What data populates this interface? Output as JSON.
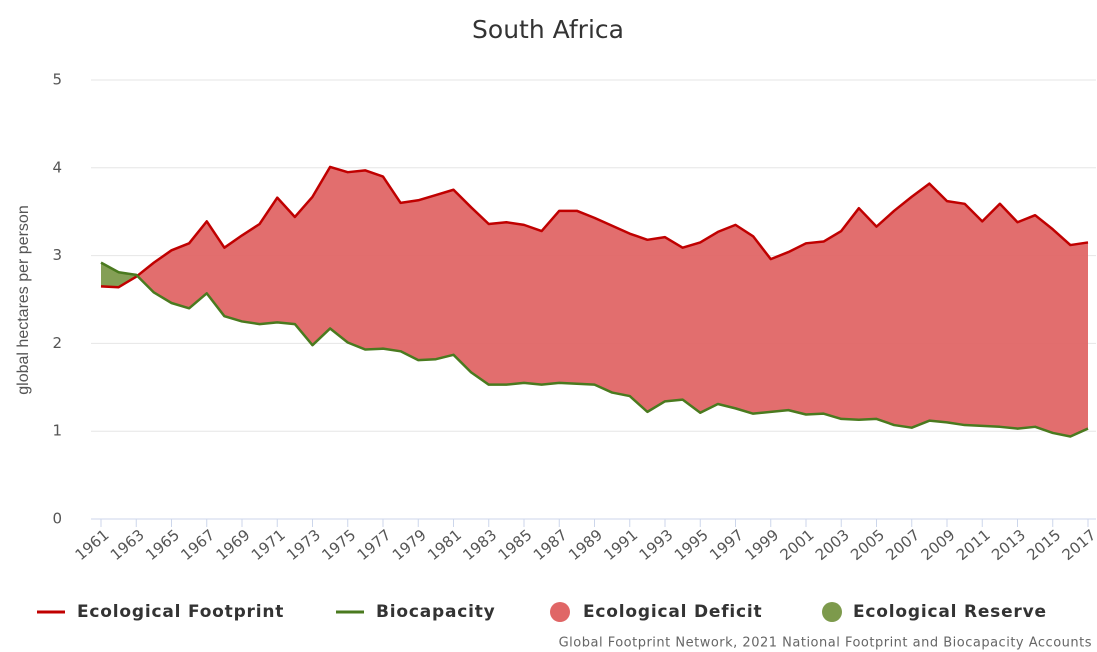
{
  "chart_data": {
    "type": "area-line",
    "title": "South Africa",
    "y_label": "global hectares per person",
    "source": "Global Footprint Network, 2021 National Footprint and Biocapacity Accounts",
    "x": [
      1961,
      1962,
      1963,
      1964,
      1965,
      1966,
      1967,
      1968,
      1969,
      1970,
      1971,
      1972,
      1973,
      1974,
      1975,
      1976,
      1977,
      1978,
      1979,
      1980,
      1981,
      1982,
      1983,
      1984,
      1985,
      1986,
      1987,
      1988,
      1989,
      1990,
      1991,
      1992,
      1993,
      1994,
      1995,
      1996,
      1997,
      1998,
      1999,
      2000,
      2001,
      2002,
      2003,
      2004,
      2005,
      2006,
      2007,
      2008,
      2009,
      2010,
      2011,
      2012,
      2013,
      2014,
      2015,
      2016,
      2017
    ],
    "series": [
      {
        "name": "Ecological Footprint",
        "color": "#c00000",
        "values": [
          2.65,
          2.64,
          2.76,
          2.92,
          3.06,
          3.14,
          3.39,
          3.09,
          3.23,
          3.36,
          3.66,
          3.44,
          3.67,
          4.01,
          3.95,
          3.97,
          3.9,
          3.6,
          3.63,
          3.69,
          3.75,
          3.55,
          3.36,
          3.38,
          3.35,
          3.28,
          3.51,
          3.51,
          3.43,
          3.34,
          3.25,
          3.18,
          3.21,
          3.09,
          3.15,
          3.27,
          3.35,
          3.22,
          2.96,
          3.04,
          3.14,
          3.16,
          3.28,
          3.54,
          3.33,
          3.51,
          3.67,
          3.82,
          3.62,
          3.59,
          3.39,
          3.59,
          3.38,
          3.46,
          3.3,
          3.12,
          3.15
        ]
      },
      {
        "name": "Biocapacity",
        "color": "#4a7a1f",
        "values": [
          2.92,
          2.81,
          2.78,
          2.58,
          2.46,
          2.4,
          2.57,
          2.31,
          2.25,
          2.22,
          2.24,
          2.22,
          1.98,
          2.17,
          2.01,
          1.93,
          1.94,
          1.91,
          1.81,
          1.82,
          1.87,
          1.67,
          1.53,
          1.53,
          1.55,
          1.53,
          1.55,
          1.54,
          1.53,
          1.44,
          1.4,
          1.22,
          1.34,
          1.36,
          1.21,
          1.31,
          1.26,
          1.2,
          1.22,
          1.24,
          1.19,
          1.2,
          1.14,
          1.13,
          1.14,
          1.07,
          1.04,
          1.12,
          1.1,
          1.07,
          1.06,
          1.05,
          1.03,
          1.05,
          0.98,
          0.94,
          1.03
        ]
      }
    ],
    "areas": [
      {
        "name": "Ecological Deficit",
        "color": "#e06666"
      },
      {
        "name": "Ecological Reserve",
        "color": "#7d9a4c"
      }
    ],
    "xlim": [
      1961,
      2017
    ],
    "xticks": [
      1961,
      1963,
      1965,
      1967,
      1969,
      1971,
      1973,
      1975,
      1977,
      1979,
      1981,
      1983,
      1985,
      1987,
      1989,
      1991,
      1993,
      1995,
      1997,
      1999,
      2001,
      2003,
      2005,
      2007,
      2009,
      2011,
      2013,
      2015,
      2017
    ],
    "ylim": [
      0,
      5
    ],
    "yticks": [
      0,
      1,
      2,
      3,
      4,
      5
    ],
    "grid": true
  }
}
